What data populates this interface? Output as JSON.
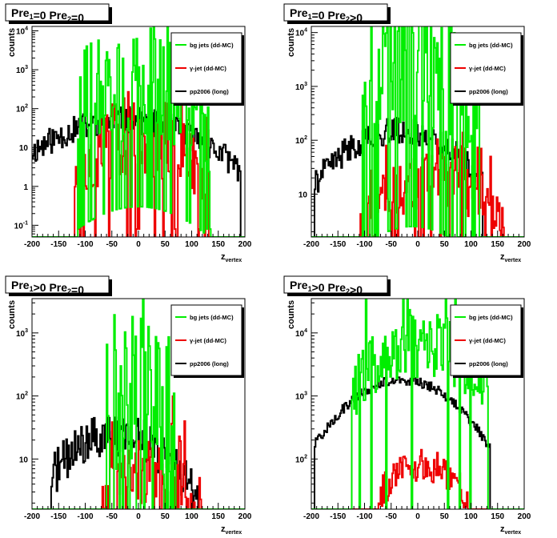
{
  "colors": {
    "bg_jets": "#00ee00",
    "gamma_jet": "#ee0000",
    "pp2006": "#000000",
    "frame": "#000000",
    "background": "#ffffff"
  },
  "legend": {
    "bg_jets": "bg jets (dd-MC)",
    "gamma_jet": "γ-jet (dd-MC)",
    "pp2006": "pp2006 (long)"
  },
  "xlabel": {
    "main": "z",
    "sub": "vertex"
  },
  "ylabel": "counts",
  "chart_data": [
    {
      "title": {
        "a": "Pre",
        "a_sub": "1",
        "b": "=0  Pre",
        "b_sub": "2",
        "c": "=0"
      },
      "type": "line",
      "yscale": "log",
      "xlim": [
        -200,
        200
      ],
      "ylim": [
        0.05,
        13000
      ],
      "x_ticks": [
        -200,
        -150,
        -100,
        -50,
        0,
        50,
        100,
        150,
        200
      ],
      "y_ticks": [
        {
          "v": 0.1,
          "base": "10",
          "exp": "-1"
        },
        {
          "v": 1,
          "base": "1",
          "exp": ""
        },
        {
          "v": 10,
          "base": "10",
          "exp": ""
        },
        {
          "v": 100,
          "base": "10",
          "exp": "2"
        },
        {
          "v": 1000,
          "base": "10",
          "exp": "3"
        },
        {
          "v": 10000,
          "base": "10",
          "exp": "4"
        }
      ],
      "series": [
        {
          "name": "pp2006 (long)",
          "color": "#000000",
          "x_range": [
            -200,
            190
          ],
          "peak": 50,
          "center": -25,
          "width": 90,
          "floor": 0.2,
          "noise": 0.35,
          "spikes": 0,
          "seed": 11
        },
        {
          "name": "γ-jet (dd-MC)",
          "color": "#ee0000",
          "x_range": [
            -120,
            130
          ],
          "peak": 15,
          "center": 0,
          "width": 65,
          "floor": 0.08,
          "noise": 0.9,
          "spikes": 0.3,
          "seed": 23
        },
        {
          "name": "bg jets (dd-MC)",
          "color": "#00ee00",
          "x_range": [
            -115,
            135
          ],
          "peak": 300,
          "center": 0,
          "width": 70,
          "floor": 0.08,
          "noise": 1.4,
          "spikes": 0.55,
          "seed": 37
        }
      ]
    },
    {
      "title": {
        "a": "Pre",
        "a_sub": "1",
        "b": "=0  Pre",
        "b_sub": "2",
        "c": ">0"
      },
      "type": "line",
      "yscale": "log",
      "xlim": [
        -200,
        200
      ],
      "ylim": [
        1.6,
        13000
      ],
      "x_ticks": [
        -200,
        -150,
        -100,
        -50,
        0,
        50,
        100,
        150,
        200
      ],
      "y_ticks": [
        {
          "v": 10,
          "base": "10",
          "exp": ""
        },
        {
          "v": 100,
          "base": "10",
          "exp": "2"
        },
        {
          "v": 1000,
          "base": "10",
          "exp": "3"
        },
        {
          "v": 10000,
          "base": "10",
          "exp": "4"
        }
      ],
      "series": [
        {
          "name": "pp2006 (long)",
          "color": "#000000",
          "x_range": [
            -195,
            120
          ],
          "peak": 150,
          "center": -35,
          "width": 75,
          "floor": 1.5,
          "noise": 0.25,
          "spikes": 0,
          "seed": 41
        },
        {
          "name": "γ-jet (dd-MC)",
          "color": "#ee0000",
          "x_range": [
            -110,
            160
          ],
          "peak": 18,
          "center": 30,
          "width": 70,
          "floor": 1.5,
          "noise": 0.5,
          "spikes": 0.2,
          "seed": 53
        },
        {
          "name": "bg jets (dd-MC)",
          "color": "#00ee00",
          "x_range": [
            -105,
            115
          ],
          "peak": 2500,
          "center": -10,
          "width": 70,
          "floor": 1.5,
          "noise": 1.1,
          "spikes": 0.5,
          "seed": 67
        }
      ]
    },
    {
      "title": {
        "a": "Pre",
        "a_sub": "1",
        "b": ">0  Pre",
        "b_sub": "2",
        "c": "=0"
      },
      "type": "line",
      "yscale": "log",
      "xlim": [
        -200,
        200
      ],
      "ylim": [
        1.6,
        3500
      ],
      "x_ticks": [
        -200,
        -150,
        -100,
        -50,
        0,
        50,
        100,
        150,
        200
      ],
      "y_ticks": [
        {
          "v": 10,
          "base": "10",
          "exp": ""
        },
        {
          "v": 100,
          "base": "10",
          "exp": "2"
        },
        {
          "v": 1000,
          "base": "10",
          "exp": "3"
        }
      ],
      "series": [
        {
          "name": "pp2006 (long)",
          "color": "#000000",
          "x_range": [
            -165,
            110
          ],
          "peak": 25,
          "center": -40,
          "width": 70,
          "floor": 1.5,
          "noise": 0.35,
          "spikes": 0,
          "seed": 71
        },
        {
          "name": "γ-jet (dd-MC)",
          "color": "#ee0000",
          "x_range": [
            -70,
            120
          ],
          "peak": 6,
          "center": 20,
          "width": 60,
          "floor": 1.5,
          "noise": 0.5,
          "spikes": 0.3,
          "seed": 83
        },
        {
          "name": "bg jets (dd-MC)",
          "color": "#00ee00",
          "x_range": [
            -65,
            70
          ],
          "peak": 120,
          "center": 0,
          "width": 40,
          "floor": 1.5,
          "noise": 1.2,
          "spikes": 0.55,
          "seed": 97
        }
      ]
    },
    {
      "title": {
        "a": "Pre",
        "a_sub": "1",
        "b": ">0  Pre",
        "b_sub": "2",
        "c": ">0"
      },
      "type": "line",
      "yscale": "log",
      "xlim": [
        -200,
        200
      ],
      "ylim": [
        16,
        35000
      ],
      "x_ticks": [
        -200,
        -150,
        -100,
        -50,
        0,
        50,
        100,
        150,
        200
      ],
      "y_ticks": [
        {
          "v": 100,
          "base": "10",
          "exp": "2"
        },
        {
          "v": 1000,
          "base": "10",
          "exp": "3"
        },
        {
          "v": 10000,
          "base": "10",
          "exp": "4"
        }
      ],
      "series": [
        {
          "name": "pp2006 (long)",
          "color": "#000000",
          "x_range": [
            -195,
            135
          ],
          "peak": 1800,
          "center": -30,
          "width": 75,
          "floor": 15,
          "noise": 0.08,
          "spikes": 0,
          "seed": 101
        },
        {
          "name": "γ-jet (dd-MC)",
          "color": "#ee0000",
          "x_range": [
            -75,
            95
          ],
          "peak": 80,
          "center": 10,
          "width": 55,
          "floor": 15,
          "noise": 0.25,
          "spikes": 0,
          "seed": 113
        },
        {
          "name": "bg jets (dd-MC)",
          "color": "#00ee00",
          "x_range": [
            -125,
            130
          ],
          "peak": 7000,
          "center": 0,
          "width": 70,
          "floor": 15,
          "noise": 0.55,
          "spikes": 0.15,
          "seed": 127
        }
      ]
    }
  ]
}
